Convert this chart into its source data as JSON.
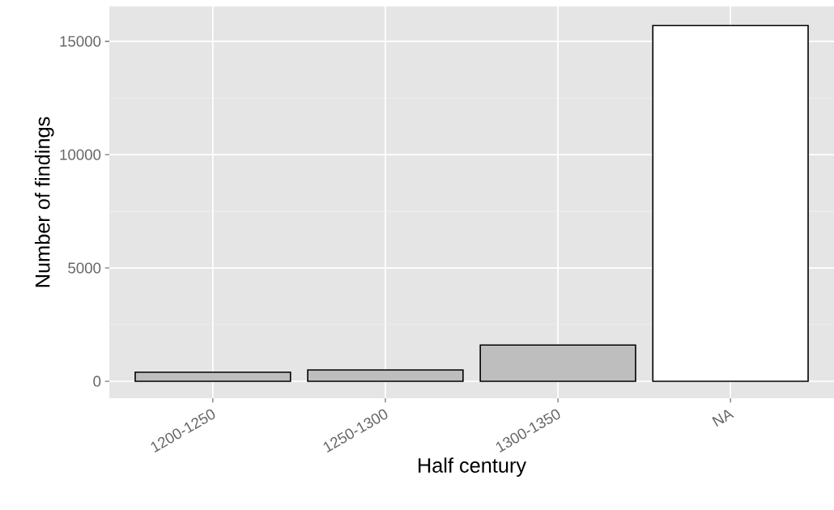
{
  "chart_data": {
    "type": "bar",
    "xlabel": "Half century",
    "ylabel": "Number of findings",
    "categories": [
      "1200-1250",
      "1250-1300",
      "1300-1350",
      "NA"
    ],
    "values": [
      400,
      500,
      1600,
      15700
    ],
    "colors": [
      "#bebebe",
      "#bebebe",
      "#bebebe",
      "#ffffff"
    ],
    "ylim": [
      -750,
      16540
    ],
    "yticks": [
      0,
      5000,
      10000,
      15000
    ],
    "grid": true
  }
}
